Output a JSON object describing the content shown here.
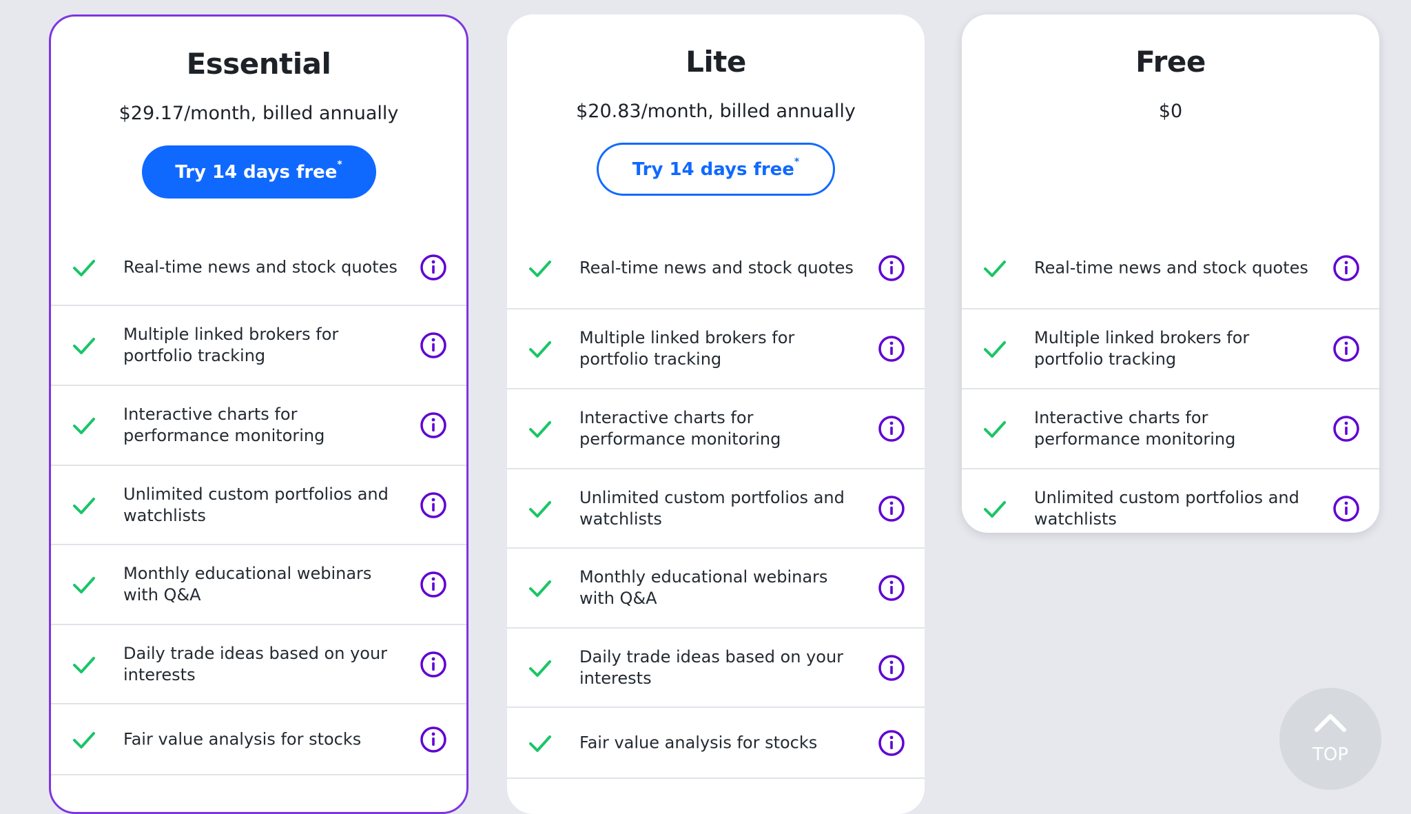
{
  "plans": [
    {
      "id": "essential",
      "title": "Essential",
      "price": "$29.17/month, billed annually",
      "cta_label": "Try 14 days free",
      "cta_mark": "*",
      "cta_style": "filled",
      "features": [
        "Real-time news and stock quotes",
        "Multiple linked brokers for portfolio tracking",
        "Interactive charts for performance monitoring",
        "Unlimited custom portfolios and watchlists",
        "Monthly educational webinars with Q&A",
        "Daily trade ideas based on your interests",
        "Fair value analysis for stocks"
      ]
    },
    {
      "id": "lite",
      "title": "Lite",
      "price": "$20.83/month, billed annually",
      "cta_label": "Try 14 days free",
      "cta_mark": "*",
      "cta_style": "outline",
      "features": [
        "Real-time news and stock quotes",
        "Multiple linked brokers for portfolio tracking",
        "Interactive charts for performance monitoring",
        "Unlimited custom portfolios and watchlists",
        "Monthly educational webinars with Q&A",
        "Daily trade ideas based on your interests",
        "Fair value analysis for stocks"
      ]
    },
    {
      "id": "free",
      "title": "Free",
      "price": "$0",
      "features": [
        "Real-time news and stock quotes",
        "Multiple linked brokers for portfolio tracking",
        "Interactive charts for performance monitoring",
        "Unlimited custom portfolios and watchlists"
      ]
    }
  ],
  "icons": {
    "check": "check-icon",
    "info": "info-icon",
    "top": "chevron-up-icon"
  },
  "colors": {
    "background": "#e6e8ee",
    "accent_blue": "#0f69ff",
    "highlight_border": "#7e35e0",
    "info_icon": "#6001d2",
    "check": "#1ac567",
    "divider": "#e0e4e9"
  },
  "scroll_top": {
    "label": "TOP"
  }
}
